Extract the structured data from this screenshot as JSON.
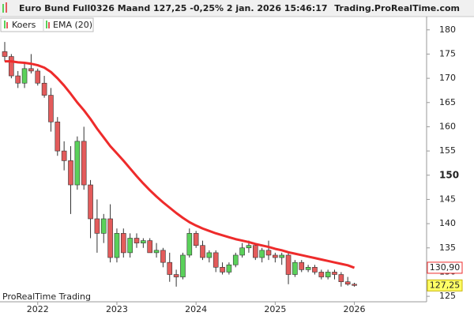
{
  "chart_data": {
    "type": "candlestick",
    "title": "Euro Bund Full0326 Maand 127,25 -0,25% 2 jan. 2026 15:46:17",
    "source": "Trading.ProRealTime.com",
    "watermark": "ProRealTime Trading",
    "categories": [
      null,
      null,
      null,
      null,
      null,
      "2022",
      null,
      null,
      null,
      null,
      null,
      null,
      null,
      null,
      null,
      null,
      null,
      "2023",
      null,
      null,
      null,
      null,
      null,
      null,
      null,
      null,
      null,
      null,
      null,
      "2024",
      null,
      null,
      null,
      null,
      null,
      null,
      null,
      null,
      null,
      null,
      null,
      "2025",
      null,
      null,
      null,
      null,
      null,
      null,
      null,
      null,
      null,
      null,
      null,
      "2026"
    ],
    "candles": {
      "name": "Koers",
      "up_color": "#5ad15a",
      "down_color": "#e35b5b",
      "open": [
        175.5,
        174.5,
        170.5,
        169,
        172,
        171.5,
        169,
        166.5,
        161,
        155,
        153,
        148,
        157,
        148,
        141,
        138,
        141,
        133,
        138,
        134,
        137,
        136,
        136.5,
        134,
        134.5,
        132,
        129.5,
        129,
        133.5,
        138,
        135.5,
        133,
        134,
        131,
        130,
        131.5,
        133.5,
        135,
        135.5,
        133,
        134.5,
        133.5,
        133,
        133.5,
        129.5,
        132,
        130.5,
        131,
        130,
        129,
        130,
        129.5,
        128,
        127.5
      ],
      "high": [
        177.5,
        175,
        171.5,
        173,
        175,
        172,
        170.5,
        168,
        162,
        157,
        156,
        158,
        160,
        149,
        145,
        142,
        144,
        139,
        139,
        138,
        138,
        137,
        137,
        136,
        135,
        134,
        130.5,
        134,
        139,
        138.5,
        136.5,
        134.5,
        134.5,
        132,
        132,
        134,
        136,
        136.5,
        136,
        135,
        136.5,
        134,
        134,
        134,
        132.5,
        132.5,
        131.5,
        131.5,
        130.5,
        130.5,
        130.5,
        130,
        129,
        127.8
      ],
      "low": [
        173.5,
        170,
        168,
        168,
        171,
        168.5,
        166,
        159,
        154,
        151,
        142,
        147,
        147,
        137,
        134,
        136,
        132,
        132,
        133,
        133,
        135,
        135,
        134,
        133,
        131,
        128,
        127,
        128.5,
        133,
        135,
        132.5,
        132,
        130,
        129.5,
        129.5,
        131,
        133,
        134,
        132.5,
        132,
        132.5,
        132,
        131.5,
        127.5,
        129,
        130,
        130,
        129.5,
        128.5,
        128.5,
        128.5,
        127,
        127.2,
        127
      ],
      "close": [
        174.5,
        170.5,
        169,
        172,
        171.5,
        169,
        166.5,
        161,
        155,
        153,
        148,
        157,
        148,
        141,
        138,
        141,
        133,
        138,
        134,
        137,
        136,
        136.5,
        134,
        134.5,
        132,
        129.5,
        129,
        133.5,
        138,
        135.5,
        133,
        134,
        131,
        130,
        131.5,
        133.5,
        135,
        135.5,
        133,
        134.5,
        133.5,
        133,
        133.5,
        129.5,
        132,
        130.5,
        131,
        130,
        129,
        130,
        129.5,
        128,
        127.5,
        127.25
      ]
    },
    "series": [
      {
        "name": "EMA (20)",
        "color": "#ee2b2b",
        "values": [
          173.5,
          173.5,
          173.3,
          173.2,
          173,
          172.7,
          172.2,
          171.3,
          170,
          168.5,
          166.8,
          165,
          163.4,
          161.6,
          159.6,
          157.8,
          156,
          154.5,
          153,
          151.4,
          149.8,
          148.3,
          146.9,
          145.6,
          144.4,
          143.3,
          142.2,
          141.2,
          140.3,
          139.6,
          139,
          138.5,
          138,
          137.6,
          137.2,
          136.8,
          136.5,
          136.2,
          135.8,
          135.5,
          135.2,
          134.8,
          134.5,
          134.1,
          133.8,
          133.5,
          133.2,
          132.9,
          132.6,
          132.3,
          132,
          131.7,
          131.4,
          130.9
        ]
      }
    ],
    "ylim": [
      124.2,
      182.9
    ],
    "yticks": [
      125,
      130,
      135,
      140,
      145,
      150,
      155,
      160,
      165,
      170,
      175,
      180
    ],
    "highlight_ytick": 150,
    "price_tags": [
      {
        "value": 130.9,
        "label": "130,90",
        "border": "#ee2b2b",
        "fill": "#ffffff"
      },
      {
        "value": 127.25,
        "label": "127,25",
        "border": "#c8b400",
        "fill": "#ffff66"
      }
    ]
  }
}
